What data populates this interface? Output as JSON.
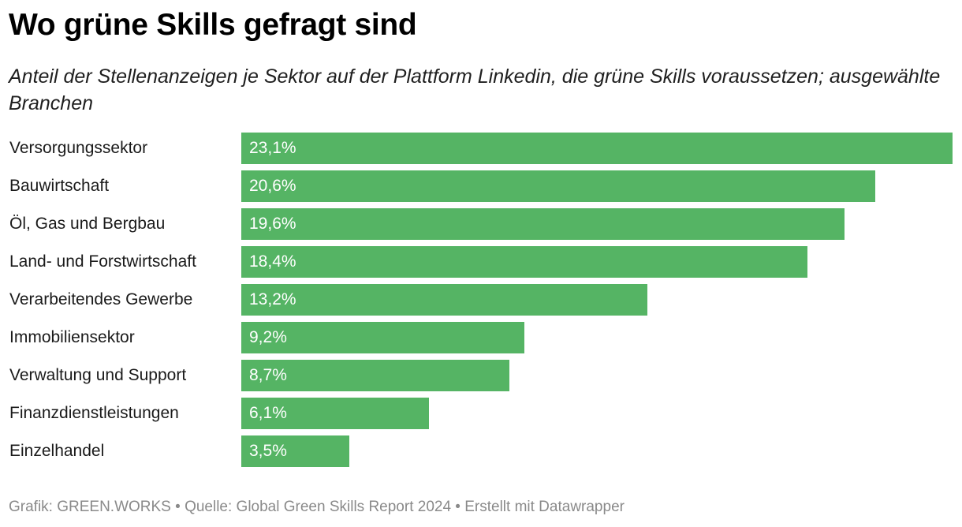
{
  "title": "Wo grüne Skills gefragt sind",
  "subtitle": "Anteil der Stellenanzeigen je Sektor auf der Plattform Linkedin, die grüne Skills voraussetzen; ausgewählte Branchen",
  "footer": "Grafik: GREEN.WORKS • Quelle: Global Green Skills Report 2024 • Erstellt mit Datawrapper",
  "colors": {
    "bar": "#55b464",
    "bar_label": "#ffffff"
  },
  "chart_data": {
    "type": "bar",
    "orientation": "horizontal",
    "title": "Wo grüne Skills gefragt sind",
    "xlabel": "",
    "ylabel": "",
    "xlim": [
      0,
      23.1
    ],
    "unit": "%",
    "categories": [
      "Versorgungssektor",
      "Bauwirtschaft",
      "Öl, Gas und Bergbau",
      "Land- und Forstwirtschaft",
      "Verarbeitendes Gewerbe",
      "Immobiliensektor",
      "Verwaltung und Support",
      "Finanzdienstleistungen",
      "Einzelhandel"
    ],
    "values": [
      23.1,
      20.6,
      19.6,
      18.4,
      13.2,
      9.2,
      8.7,
      6.1,
      3.5
    ],
    "value_labels": [
      "23,1%",
      "20,6%",
      "19,6%",
      "18,4%",
      "13,2%",
      "9,2%",
      "8,7%",
      "6,1%",
      "3,5%"
    ]
  }
}
